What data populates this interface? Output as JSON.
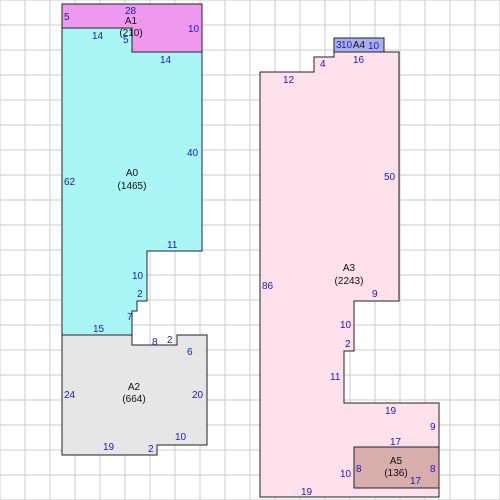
{
  "colors": {
    "grid": "#cccccc",
    "outline": "#222222",
    "dimension_text": "#1a1acc",
    "A0": "#aaf5f5",
    "A1": "#ee99ee",
    "A2": "#e6e6e6",
    "A3": "#ffe0eb",
    "A4": "#aab0ee",
    "A5": "#d7aeac"
  },
  "rooms": [
    {
      "id": "A0",
      "area": "(1465)"
    },
    {
      "id": "A1",
      "area": "(210)"
    },
    {
      "id": "A2",
      "area": "(664)"
    },
    {
      "id": "A3",
      "area": "(2243)"
    },
    {
      "id": "A4",
      "area": ""
    },
    {
      "id": "A5",
      "area": "(136)"
    }
  ],
  "dimensions": {
    "A1": [
      "28",
      "10",
      "5",
      "14",
      "5"
    ],
    "A0": [
      "14",
      "40",
      "11",
      "10",
      "2",
      "7",
      "15",
      "62"
    ],
    "A2": [
      "8",
      "2",
      "6",
      "20",
      "10",
      "2",
      "19",
      "24"
    ],
    "A4": [
      "3",
      "10",
      "10"
    ],
    "A3": [
      "16",
      "4",
      "12",
      "50",
      "9",
      "10",
      "2",
      "11",
      "19",
      "9",
      "17",
      "10",
      "8",
      "19",
      "86"
    ],
    "A5": [
      "17",
      "8"
    ]
  }
}
